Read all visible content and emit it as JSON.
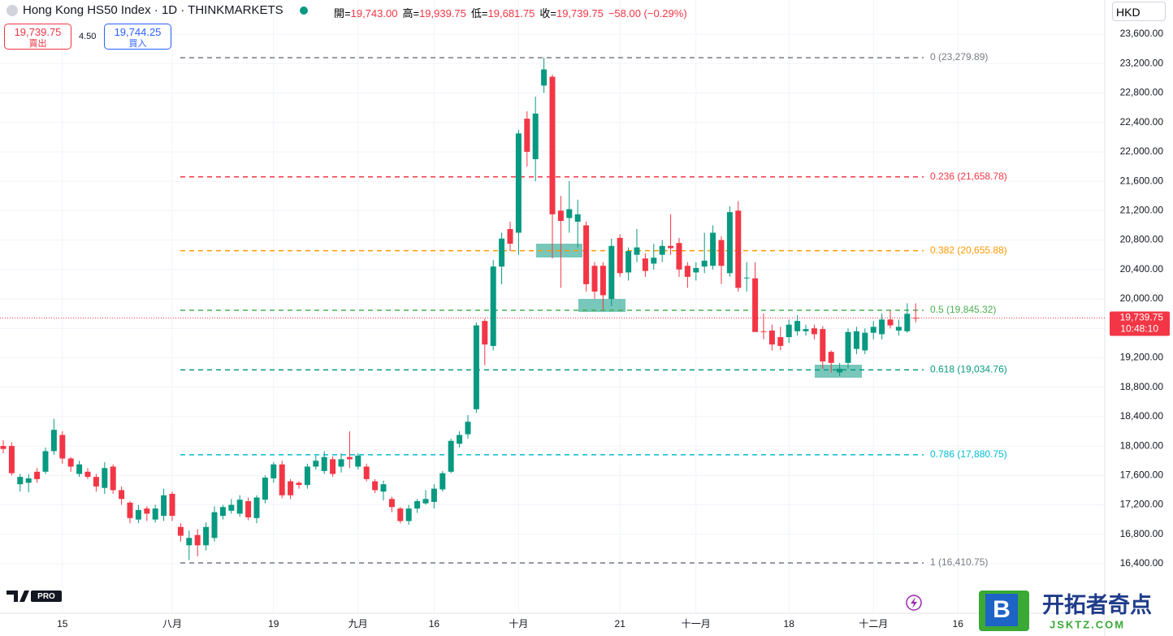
{
  "header": {
    "title": "Hong Kong HS50 Index · 1D · THINKMARKETS",
    "ohlc": [
      {
        "label": "開",
        "value": "19,743.00"
      },
      {
        "label": "高",
        "value": "19,939.75"
      },
      {
        "label": "低",
        "value": "19,681.75"
      },
      {
        "label": "收",
        "value": "19,739.75"
      }
    ],
    "change": "−58.00 (−0.29%)",
    "sell": {
      "price": "19,739.75",
      "label": "賣出"
    },
    "spread": "4.50",
    "buy": {
      "price": "19,744.25",
      "label": "買入"
    },
    "currency": "HKD"
  },
  "chart_data": {
    "type": "candlestick",
    "categories": [
      null,
      null,
      null,
      null,
      null,
      null,
      null,
      "15",
      null,
      null,
      null,
      null,
      null,
      null,
      null,
      null,
      null,
      null,
      null,
      null,
      "八月",
      null,
      null,
      null,
      null,
      null,
      null,
      null,
      null,
      null,
      null,
      null,
      "19",
      null,
      null,
      null,
      null,
      null,
      null,
      null,
      null,
      null,
      "九月",
      null,
      null,
      null,
      null,
      null,
      null,
      null,
      null,
      "16",
      null,
      null,
      null,
      null,
      null,
      null,
      null,
      null,
      null,
      "十月",
      null,
      null,
      null,
      null,
      null,
      null,
      null,
      null,
      null,
      null,
      null,
      "21",
      null,
      null,
      null,
      null,
      null,
      null,
      null,
      null,
      "十一月",
      null,
      null,
      null,
      null,
      null,
      null,
      null,
      null,
      null,
      null,
      "18",
      null,
      null,
      null,
      null,
      null,
      null,
      null,
      null,
      null,
      "十二月",
      null,
      null,
      null,
      null,
      null,
      null,
      null,
      null,
      null,
      "16"
    ],
    "open": [
      18000,
      18000,
      17480,
      17500,
      17650,
      17650,
      17930,
      18150,
      17830,
      17620,
      17650,
      17580,
      17430,
      17720,
      17400,
      17230,
      17000,
      17150,
      17000,
      17050,
      17350,
      16900,
      16650,
      16790,
      16650,
      16750,
      17050,
      17120,
      17080,
      17250,
      17020,
      17270,
      17560,
      17750,
      17520,
      17500,
      17470,
      17720,
      17660,
      17820,
      17720,
      17850,
      17720,
      17720,
      17520,
      17380,
      17280,
      17150,
      16980,
      17150,
      17220,
      17240,
      17410,
      17650,
      18030,
      18160,
      18500,
      19700,
      19360,
      20440,
      20950,
      20900,
      22450,
      21900,
      22900,
      23020,
      21200,
      21100,
      21050,
      21000,
      20450,
      20450,
      20000,
      20830,
      20360,
      20600,
      20550,
      20480,
      20600,
      20720,
      20760,
      20450,
      20360,
      20440,
      20450,
      20800,
      20350,
      21200,
      20280,
      20280,
      19560,
      19570,
      19480,
      19480,
      19560,
      19560,
      19600,
      19590,
      19280,
      19000,
      19130,
      19320,
      19300,
      19540,
      19520,
      19720,
      19570,
      19560,
      19743,
      null,
      null,
      null,
      null,
      null
    ],
    "high": [
      18080,
      18050,
      17620,
      17620,
      17700,
      17980,
      18370,
      18200,
      17850,
      17800,
      17700,
      17620,
      17780,
      17750,
      17450,
      17250,
      17200,
      17180,
      17200,
      17420,
      17380,
      16950,
      16850,
      16870,
      16960,
      17180,
      17200,
      17280,
      17330,
      17300,
      17330,
      17600,
      17780,
      17800,
      17550,
      17520,
      17760,
      17870,
      17930,
      17860,
      17900,
      18200,
      17900,
      17760,
      17550,
      17530,
      17310,
      17170,
      17200,
      17280,
      17400,
      17480,
      17660,
      18100,
      18200,
      18420,
      19680,
      19730,
      20530,
      20900,
      21050,
      22300,
      22550,
      22750,
      23280,
      23050,
      21400,
      21600,
      21350,
      21050,
      20500,
      20500,
      20820,
      20880,
      20700,
      20950,
      20620,
      20750,
      20800,
      21150,
      20830,
      20500,
      20500,
      20900,
      21000,
      20850,
      21260,
      21330,
      20500,
      20500,
      19800,
      19650,
      19620,
      19720,
      19780,
      19650,
      19650,
      19630,
      19300,
      19130,
      19600,
      19620,
      19600,
      19700,
      19800,
      19840,
      19720,
      19940,
      19939.75,
      null,
      null,
      null,
      null,
      null
    ],
    "low": [
      17900,
      17600,
      17380,
      17370,
      17500,
      17620,
      17880,
      17760,
      17650,
      17580,
      17550,
      17380,
      17350,
      17350,
      17200,
      16950,
      16950,
      16980,
      16960,
      16980,
      16980,
      16700,
      16450,
      16500,
      16580,
      16700,
      17000,
      17080,
      17040,
      16990,
      16950,
      17220,
      17500,
      17290,
      17280,
      17420,
      17420,
      17680,
      17620,
      17580,
      17640,
      17700,
      17680,
      17520,
      17360,
      17260,
      17100,
      16950,
      16930,
      17090,
      17200,
      17150,
      17380,
      17630,
      17980,
      18100,
      18450,
      19100,
      19300,
      20200,
      20650,
      20600,
      21800,
      21600,
      22800,
      20550,
      20150,
      20900,
      20700,
      20100,
      20000,
      19850,
      19900,
      20300,
      20250,
      20500,
      20300,
      20400,
      20500,
      20600,
      20300,
      20150,
      20250,
      20350,
      20400,
      20200,
      20300,
      20100,
      20100,
      19550,
      19450,
      19300,
      19300,
      19400,
      19500,
      19500,
      19450,
      19050,
      19000,
      18950,
      19050,
      19250,
      19250,
      19450,
      19450,
      19600,
      19500,
      19540,
      19681.75,
      null,
      null,
      null,
      null,
      null
    ],
    "close": [
      17960,
      17630,
      17580,
      17560,
      17550,
      17930,
      18220,
      17830,
      17720,
      17750,
      17580,
      17450,
      17700,
      17400,
      17280,
      17020,
      17130,
      17080,
      17150,
      17330,
      17050,
      16780,
      16750,
      16650,
      16900,
      17100,
      17170,
      17200,
      17270,
      17030,
      17300,
      17570,
      17750,
      17330,
      17330,
      17470,
      17720,
      17800,
      17850,
      17620,
      17820,
      17820,
      17870,
      17550,
      17400,
      17480,
      17170,
      16980,
      17150,
      17250,
      17280,
      17420,
      17630,
      18070,
      18150,
      18330,
      19640,
      19380,
      20440,
      20820,
      20750,
      22250,
      22000,
      22520,
      23120,
      21150,
      21060,
      21220,
      21150,
      20200,
      20100,
      20050,
      20720,
      20350,
      20650,
      20700,
      20380,
      20560,
      20720,
      20690,
      20400,
      20300,
      20420,
      20520,
      20900,
      20450,
      21180,
      20150,
      20290,
      19550,
      19550,
      19380,
      19360,
      19650,
      19700,
      19590,
      19520,
      19150,
      19130,
      19050,
      19550,
      19560,
      19540,
      19620,
      19720,
      19640,
      19620,
      19797.75,
      19739.75,
      null,
      null,
      null,
      null,
      null
    ],
    "up_color": "#089981",
    "down_color": "#f23645",
    "ylim": [
      15726,
      24064
    ],
    "yticks": [
      {
        "value": 16400,
        "label": "16,400.00"
      },
      {
        "value": 16800,
        "label": "16,800.00"
      },
      {
        "value": 17200,
        "label": "17,200.00"
      },
      {
        "value": 17600,
        "label": "17,600.00"
      },
      {
        "value": 18000,
        "label": "18,000.00"
      },
      {
        "value": 18400,
        "label": "18,400.00"
      },
      {
        "value": 18800,
        "label": "18,800.00"
      },
      {
        "value": 19200,
        "label": "19,200.00"
      },
      {
        "value": 19600,
        "label": "19,600.00"
      },
      {
        "value": 20000,
        "label": "20,000.00"
      },
      {
        "value": 20400,
        "label": "20,400.00"
      },
      {
        "value": 20800,
        "label": "20,800.00"
      },
      {
        "value": 21200,
        "label": "21,200.00"
      },
      {
        "value": 21600,
        "label": "21,600.00"
      },
      {
        "value": 22000,
        "label": "22,000.00"
      },
      {
        "value": 22400,
        "label": "22,400.00"
      },
      {
        "value": 22800,
        "label": "22,800.00"
      },
      {
        "value": 23200,
        "label": "23,200.00"
      },
      {
        "value": 23600,
        "label": "23,600.00"
      }
    ],
    "grid": true,
    "fib_levels": [
      {
        "label": "0 (23,279.89)",
        "value": 23279.89,
        "color": "#787b86"
      },
      {
        "label": "0.236 (21,658.78)",
        "value": 21658.78,
        "color": "#f23645"
      },
      {
        "label": "0.382 (20,655.88)",
        "value": 20655.88,
        "color": "#ff9800"
      },
      {
        "label": "0.5 (19,845.32)",
        "value": 19845.32,
        "color": "#4caf50"
      },
      {
        "label": "0.618 (19,034.76)",
        "value": 19034.76,
        "color": "#089981"
      },
      {
        "label": "0.786 (17,880.75)",
        "value": 17880.75,
        "color": "#00bcd4"
      },
      {
        "label": "1 (16,410.75)",
        "value": 16410.75,
        "color": "#787b86"
      }
    ],
    "last_price": {
      "value": 19739.75,
      "label": "19,739.75",
      "time": "10:48:10",
      "color": "#f23645"
    }
  },
  "logo": "PRO",
  "watermark": {
    "title": "开拓者奇点",
    "url": "JSKTZ.COM"
  }
}
